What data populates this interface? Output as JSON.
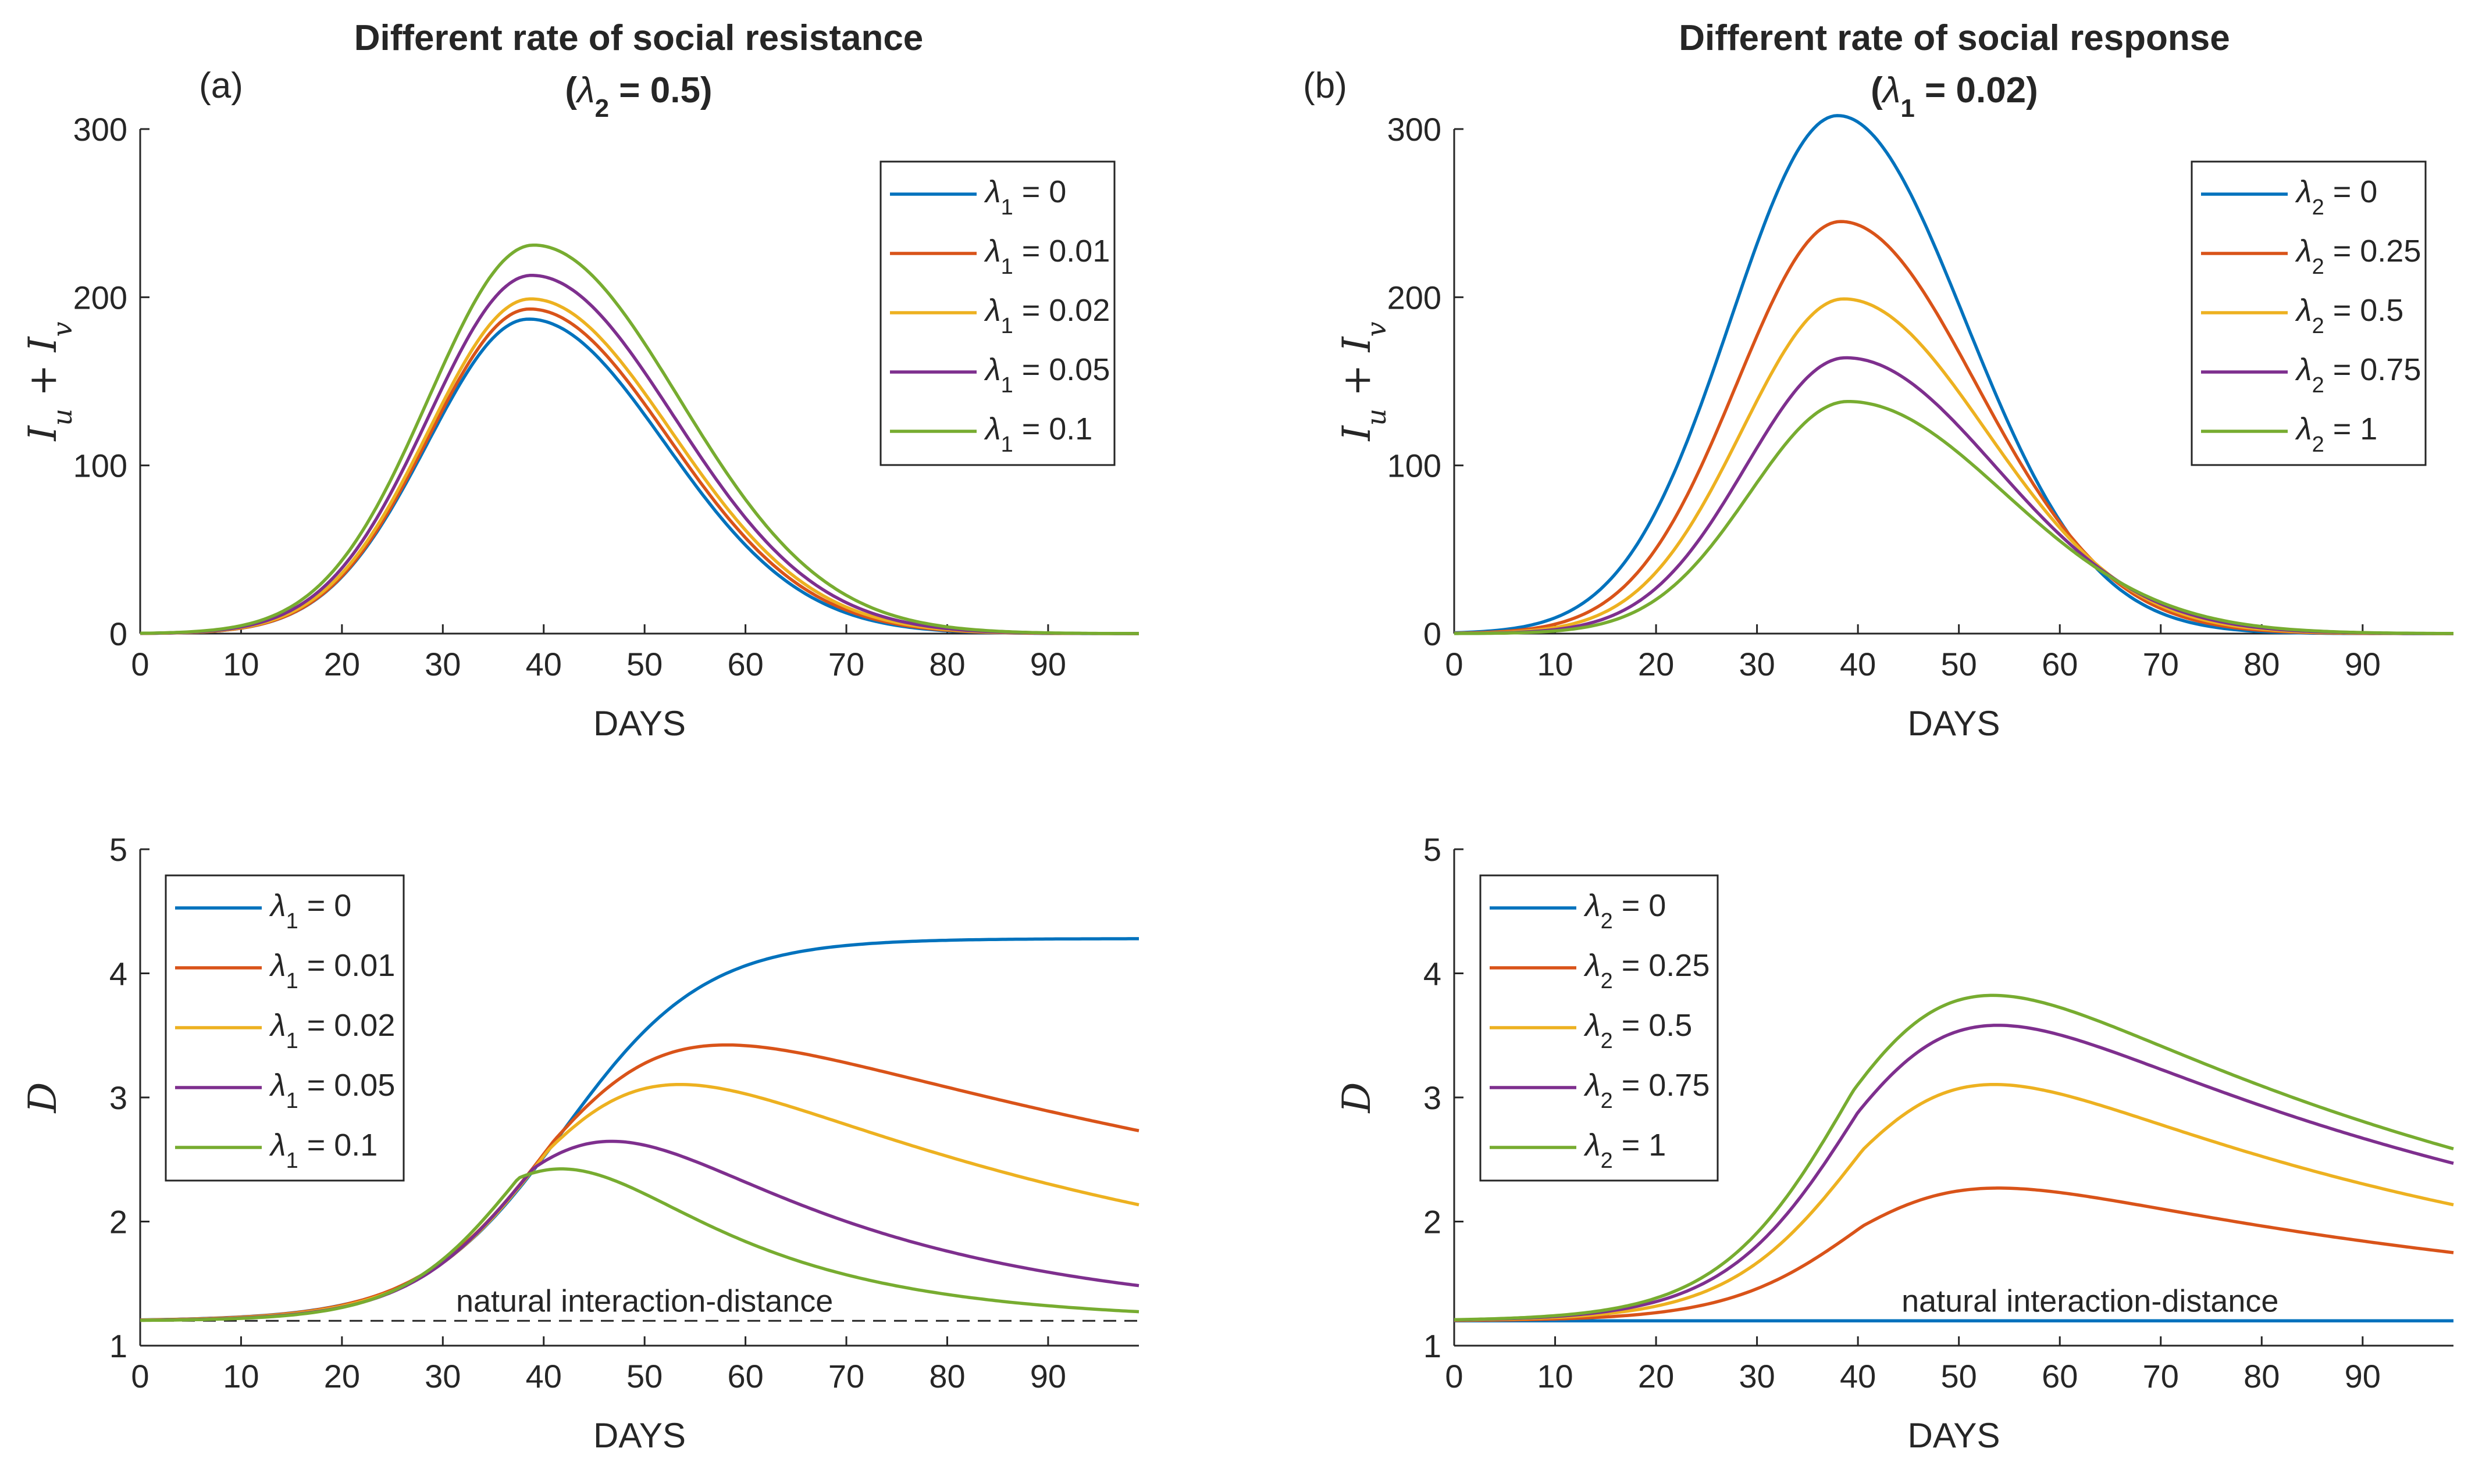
{
  "panels": [
    {
      "id": "a",
      "letter": "(a)",
      "title_line1": "Different rate of social resistance",
      "title_line2": {
        "open": "(",
        "symbol": "λ",
        "sub": "2",
        "rest": " = 0.5)"
      }
    },
    {
      "id": "b",
      "letter": "(b)",
      "title_line1": "Different rate of social response",
      "title_line2": {
        "open": "(",
        "symbol": "λ",
        "sub": "1",
        "rest": " = 0.02)"
      }
    }
  ],
  "colors": {
    "blue": "#0072BD",
    "orange": "#D95319",
    "yellow": "#EDB120",
    "purple": "#7E2F8E",
    "green": "#77AC30",
    "axis": "#262626",
    "dashed": "#262626"
  },
  "chart_data": [
    {
      "id": "top-left",
      "type": "line",
      "panel": "a",
      "title": "",
      "xlabel": "DAYS",
      "ylabel": {
        "main": "I",
        "sub1": "u",
        "plus": " + ",
        "main2": "I",
        "sub2": "v"
      },
      "xlim": [
        0,
        99
      ],
      "ylim": [
        0,
        300
      ],
      "xticks": [
        0,
        10,
        20,
        30,
        40,
        50,
        60,
        70,
        80,
        90
      ],
      "yticks": [
        0,
        100,
        200,
        300
      ],
      "legend_position": "top-right",
      "curve_model": "gaussian",
      "series": [
        {
          "name": "λ1 = 0",
          "symbol": "λ",
          "sub": "1",
          "rest": " = 0",
          "color": "#0072BD",
          "peak": 187,
          "peak_day": 38.5,
          "width_left": 10.0,
          "width_right": 13.5,
          "baseline": 0
        },
        {
          "name": "λ1 = 0.01",
          "symbol": "λ",
          "sub": "1",
          "rest": " = 0.01",
          "color": "#D95319",
          "peak": 193,
          "peak_day": 38.6,
          "width_left": 10.0,
          "width_right": 13.7,
          "baseline": 0
        },
        {
          "name": "λ1 = 0.02",
          "symbol": "λ",
          "sub": "1",
          "rest": " = 0.02",
          "color": "#EDB120",
          "peak": 199,
          "peak_day": 38.7,
          "width_left": 10.1,
          "width_right": 13.9,
          "baseline": 0
        },
        {
          "name": "λ1 = 0.05",
          "symbol": "λ",
          "sub": "1",
          "rest": " = 0.05",
          "color": "#7E2F8E",
          "peak": 213,
          "peak_day": 38.8,
          "width_left": 10.2,
          "width_right": 14.1,
          "baseline": 0
        },
        {
          "name": "λ1 = 0.1",
          "symbol": "λ",
          "sub": "1",
          "rest": " = 0.1",
          "color": "#77AC30",
          "peak": 231,
          "peak_day": 39.0,
          "width_left": 10.4,
          "width_right": 14.4,
          "baseline": 0
        }
      ]
    },
    {
      "id": "top-right",
      "type": "line",
      "panel": "b",
      "title": "",
      "xlabel": "DAYS",
      "ylabel": {
        "main": "I",
        "sub1": "u",
        "plus": " + ",
        "main2": "I",
        "sub2": "v"
      },
      "xlim": [
        0,
        99
      ],
      "ylim": [
        0,
        300
      ],
      "xticks": [
        0,
        10,
        20,
        30,
        40,
        50,
        60,
        70,
        80,
        90
      ],
      "yticks": [
        0,
        100,
        200,
        300
      ],
      "legend_position": "top-right",
      "curve_model": "gaussian",
      "series": [
        {
          "name": "λ2 = 0",
          "symbol": "λ",
          "sub": "2",
          "rest": " = 0",
          "color": "#0072BD",
          "peak": 308,
          "peak_day": 38.0,
          "width_left": 10.6,
          "width_right": 12.6,
          "baseline": 0
        },
        {
          "name": "λ2 = 0.25",
          "symbol": "λ",
          "sub": "2",
          "rest": " = 0.25",
          "color": "#D95319",
          "peak": 245,
          "peak_day": 38.3,
          "width_left": 10.3,
          "width_right": 13.4,
          "baseline": 0
        },
        {
          "name": "λ2 = 0.5",
          "symbol": "λ",
          "sub": "2",
          "rest": " = 0.5",
          "color": "#EDB120",
          "peak": 199,
          "peak_day": 38.6,
          "width_left": 10.1,
          "width_right": 14.1,
          "baseline": 0
        },
        {
          "name": "λ2 = 0.75",
          "symbol": "λ",
          "sub": "2",
          "rest": " = 0.75",
          "color": "#7E2F8E",
          "peak": 164,
          "peak_day": 38.8,
          "width_left": 9.9,
          "width_right": 14.8,
          "baseline": 0
        },
        {
          "name": "λ2 = 1",
          "symbol": "λ",
          "sub": "2",
          "rest": " = 1",
          "color": "#77AC30",
          "peak": 138,
          "peak_day": 39.0,
          "width_left": 9.7,
          "width_right": 15.5,
          "baseline": 0
        }
      ]
    },
    {
      "id": "bottom-left",
      "type": "line",
      "panel": "a",
      "title": "",
      "xlabel": "DAYS",
      "ylabel": {
        "main": "D"
      },
      "xlim": [
        0,
        99
      ],
      "ylim": [
        1,
        5
      ],
      "xticks": [
        0,
        10,
        20,
        30,
        40,
        50,
        60,
        70,
        80,
        90
      ],
      "yticks": [
        1,
        2,
        3,
        4,
        5
      ],
      "legend_position": "top-left",
      "curve_model": "rise-decay",
      "reference_line": {
        "y": 1.2,
        "label": "natural interaction-distance",
        "label_x": 50
      },
      "series": [
        {
          "name": "λ1 = 0",
          "symbol": "λ",
          "sub": "1",
          "rest": " = 0",
          "color": "#0072BD",
          "baseline": 1.2,
          "amplitude": 3.08,
          "midpoint": 42,
          "steepness": 7.0,
          "decay": 0
        },
        {
          "name": "λ1 = 0.01",
          "symbol": "λ",
          "sub": "1",
          "rest": " = 0.01",
          "color": "#D95319",
          "baseline": 1.2,
          "amplitude": 2.9,
          "midpoint": 41,
          "steepness": 6.8,
          "decay": 0.011
        },
        {
          "name": "λ1 = 0.02",
          "symbol": "λ",
          "sub": "1",
          "rest": " = 0.02",
          "color": "#EDB120",
          "baseline": 1.2,
          "amplitude": 2.76,
          "midpoint": 40.5,
          "steepness": 6.6,
          "decay": 0.0185
        },
        {
          "name": "λ1 = 0.05",
          "symbol": "λ",
          "sub": "1",
          "rest": " = 0.05",
          "color": "#7E2F8E",
          "baseline": 1.2,
          "amplitude": 2.46,
          "midpoint": 39,
          "steepness": 6.2,
          "decay": 0.036
        },
        {
          "name": "λ1 = 0.1",
          "symbol": "λ",
          "sub": "1",
          "rest": " = 0.1",
          "color": "#77AC30",
          "baseline": 1.2,
          "amplitude": 2.3,
          "midpoint": 37.5,
          "steepness": 5.8,
          "decay": 0.056
        }
      ]
    },
    {
      "id": "bottom-right",
      "type": "line",
      "panel": "b",
      "title": "",
      "xlabel": "DAYS",
      "ylabel": {
        "main": "D"
      },
      "xlim": [
        0,
        99
      ],
      "ylim": [
        1,
        5
      ],
      "xticks": [
        0,
        10,
        20,
        30,
        40,
        50,
        60,
        70,
        80,
        90
      ],
      "yticks": [
        1,
        2,
        3,
        4,
        5
      ],
      "legend_position": "top-left",
      "curve_model": "rise-decay",
      "reference_line": {
        "y": 1.2,
        "label": "natural interaction-distance",
        "label_x": 63
      },
      "series": [
        {
          "name": "λ2 = 0",
          "symbol": "λ",
          "sub": "2",
          "rest": " = 0",
          "color": "#0072BD",
          "baseline": 1.2,
          "amplitude": 0,
          "midpoint": 40,
          "steepness": 6.6,
          "decay": 0
        },
        {
          "name": "λ2 = 0.25",
          "symbol": "λ",
          "sub": "2",
          "rest": " = 0.25",
          "color": "#D95319",
          "baseline": 1.2,
          "amplitude": 1.53,
          "midpoint": 40.5,
          "steepness": 6.6,
          "decay": 0.0175
        },
        {
          "name": "λ2 = 0.5",
          "symbol": "λ",
          "sub": "2",
          "rest": " = 0.5",
          "color": "#EDB120",
          "baseline": 1.2,
          "amplitude": 2.76,
          "midpoint": 40.5,
          "steepness": 6.6,
          "decay": 0.0185
        },
        {
          "name": "λ2 = 0.75",
          "symbol": "λ",
          "sub": "2",
          "rest": " = 0.75",
          "color": "#7E2F8E",
          "baseline": 1.2,
          "amplitude": 3.36,
          "midpoint": 40,
          "steepness": 6.6,
          "decay": 0.0165
        },
        {
          "name": "λ2 = 1",
          "symbol": "λ",
          "sub": "2",
          "rest": " = 1",
          "color": "#77AC30",
          "baseline": 1.2,
          "amplitude": 3.7,
          "midpoint": 39.5,
          "steepness": 6.6,
          "decay": 0.0165
        }
      ]
    }
  ]
}
